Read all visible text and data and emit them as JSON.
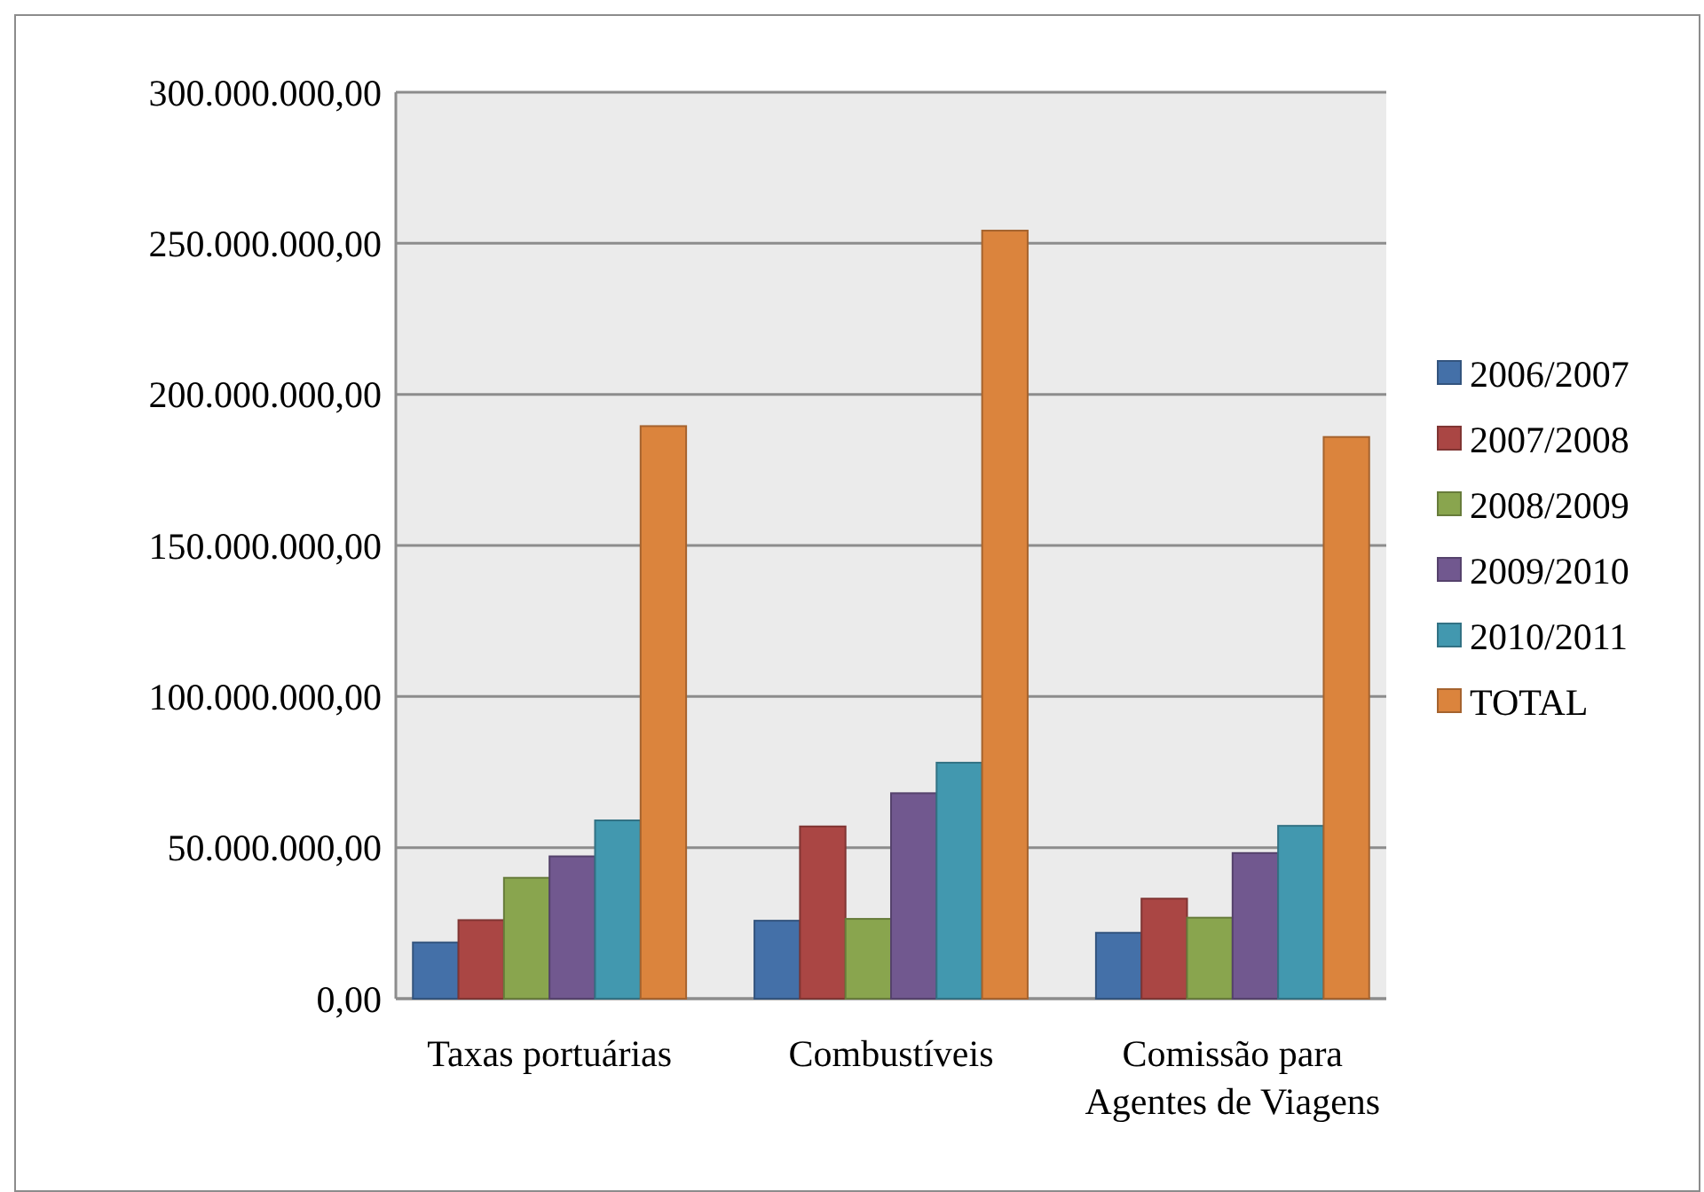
{
  "chart_data": {
    "type": "bar",
    "categories": [
      "Taxas portuárias",
      "Combustíveis",
      "Comissão para Agentes de Viagens"
    ],
    "series": [
      {
        "name": "2006/2007",
        "color": "#4470a8",
        "values": [
          18600000,
          25800000,
          21800000
        ]
      },
      {
        "name": "2007/2008",
        "color": "#aa4644",
        "values": [
          26000000,
          57000000,
          33100000
        ]
      },
      {
        "name": "2008/2009",
        "color": "#89a54e",
        "values": [
          40000000,
          26400000,
          26800000
        ]
      },
      {
        "name": "2009/2010",
        "color": "#71588f",
        "values": [
          47100000,
          68000000,
          48200000
        ]
      },
      {
        "name": "2010/2011",
        "color": "#4298af",
        "values": [
          59000000,
          78100000,
          57200000
        ]
      },
      {
        "name": "TOTAL",
        "color": "#db843d",
        "values": [
          189500000,
          254200000,
          185900000
        ]
      }
    ],
    "ylim": [
      0,
      300000000
    ],
    "yticks": [
      {
        "value": 0,
        "label": "0,00"
      },
      {
        "value": 50000000,
        "label": "50.000.000,00"
      },
      {
        "value": 100000000,
        "label": "100.000.000,00"
      },
      {
        "value": 150000000,
        "label": "150.000.000,00"
      },
      {
        "value": 200000000,
        "label": "200.000.000,00"
      },
      {
        "value": 250000000,
        "label": "250.000.000,00"
      },
      {
        "value": 300000000,
        "label": "300.000.000,00"
      }
    ],
    "grid": "y",
    "legend": "right"
  }
}
